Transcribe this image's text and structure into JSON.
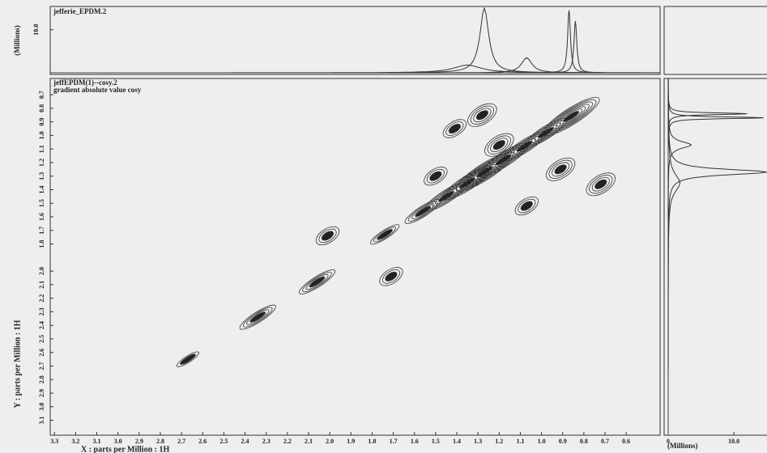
{
  "chart_data": {
    "type": "contour",
    "title": "jeffEPDM(1)--cosy.2",
    "subtitle": "gradient absolute value cosy",
    "x_label": "X : parts per Million : 1H",
    "y_label": "Y : parts per Million : 1H",
    "xlim": [
      3.32,
      0.44
    ],
    "xticks": [
      3.3,
      3.2,
      3.1,
      {
        "value": 3,
        "label": "3.0"
      },
      2.9,
      2.8,
      2.7,
      2.6,
      2.5,
      2.4,
      2.3,
      2.2,
      2.1,
      {
        "value": 2,
        "label": "2.0"
      },
      1.9,
      1.8,
      1.7,
      1.6,
      1.5,
      1.4,
      1.3,
      1.2,
      1.1,
      {
        "value": 1,
        "label": "1.0"
      },
      0.9,
      0.8,
      0.7,
      0.6
    ],
    "ylim": [
      0.58,
      3.21
    ],
    "yticks": [
      0.7,
      0.8,
      0.9,
      {
        "value": 1,
        "label": "1.0"
      },
      1.1,
      1.2,
      1.3,
      1.4,
      1.5,
      1.6,
      1.7,
      1.8,
      {
        "value": 2,
        "label": "2.0"
      },
      2.1,
      2.2,
      2.3,
      2.4,
      2.5,
      2.6,
      2.7,
      2.8,
      2.9,
      {
        "value": 3,
        "label": "3.0"
      },
      3.1
    ],
    "peaks": [
      {
        "x": 2.67,
        "y": 2.65,
        "levels": 2
      },
      {
        "x": 2.34,
        "y": 2.34,
        "levels": 4
      },
      {
        "x": 2.06,
        "y": 2.08,
        "levels": 4
      },
      {
        "x": 2.01,
        "y": 1.74,
        "levels": 3
      },
      {
        "x": 1.71,
        "y": 2.04,
        "levels": 3
      },
      {
        "x": 1.74,
        "y": 1.73,
        "levels": 3
      },
      {
        "x": 1.56,
        "y": 1.56,
        "levels": 4
      },
      {
        "x": 1.45,
        "y": 1.45,
        "levels": 5
      },
      {
        "x": 1.35,
        "y": 1.35,
        "levels": 6
      },
      {
        "x": 1.27,
        "y": 1.27,
        "levels": 7
      },
      {
        "x": 1.18,
        "y": 1.18,
        "levels": 6
      },
      {
        "x": 1.08,
        "y": 1.08,
        "levels": 5
      },
      {
        "x": 0.98,
        "y": 0.98,
        "levels": 5
      },
      {
        "x": 0.86,
        "y": 0.86,
        "levels": 7
      },
      {
        "x": 1.28,
        "y": 0.85,
        "levels": 4
      },
      {
        "x": 1.41,
        "y": 0.95,
        "levels": 3
      },
      {
        "x": 1.2,
        "y": 1.07,
        "levels": 4
      },
      {
        "x": 0.91,
        "y": 1.25,
        "levels": 4
      },
      {
        "x": 0.72,
        "y": 1.36,
        "levels": 4
      },
      {
        "x": 1.07,
        "y": 1.52,
        "levels": 3
      },
      {
        "x": 1.5,
        "y": 1.3,
        "levels": 3
      }
    ],
    "projection": {
      "title": "jefferie_EPDM.2",
      "axis_label": "(Millions)",
      "ylim": [
        0,
        15.4
      ],
      "yticks": [
        {
          "value": 10,
          "label": "10.0"
        }
      ],
      "xticks": [
        0,
        {
          "value": 10,
          "label": "10.0"
        }
      ],
      "peaks": [
        {
          "x": 1.27,
          "height": 15,
          "width": 0.025
        },
        {
          "x": 1.35,
          "height": 1.8,
          "width": 0.08
        },
        {
          "x": 1.07,
          "height": 3.5,
          "width": 0.03
        },
        {
          "x": 0.87,
          "height": 14.5,
          "width": 0.008
        },
        {
          "x": 0.84,
          "height": 12,
          "width": 0.008
        }
      ]
    }
  }
}
